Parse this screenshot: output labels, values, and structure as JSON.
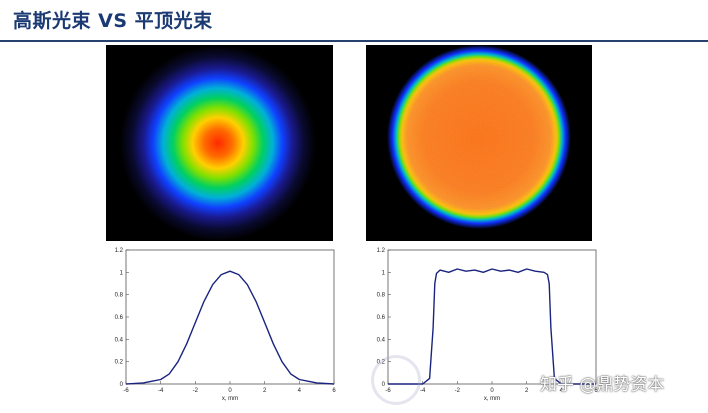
{
  "header": {
    "title": "高斯光束 VS 平顶光束"
  },
  "colors": {
    "title": "#1b3a73",
    "rule": "#27426f",
    "curve": "#1a237e"
  },
  "watermark": {
    "text": "知乎 @鼎势资本"
  },
  "chart_data": [
    {
      "type": "line",
      "xlim": [
        -6,
        6
      ],
      "ylim": [
        0,
        1.2
      ],
      "x_ticks": [
        "-6",
        "-4",
        "-2",
        "0",
        "2",
        "4",
        "6"
      ],
      "y_ticks": [
        "0",
        "0.2",
        "0.4",
        "0.6",
        "0.8",
        "1",
        "1.2"
      ],
      "xlabel": "x, mm",
      "x": [
        -6,
        -5,
        -4,
        -3.5,
        -3,
        -2.5,
        -2,
        -1.5,
        -1,
        -0.5,
        0,
        0.5,
        1,
        1.5,
        2,
        2.5,
        3,
        3.5,
        4,
        5,
        6
      ],
      "values": [
        0,
        0.01,
        0.04,
        0.09,
        0.2,
        0.36,
        0.55,
        0.74,
        0.89,
        0.98,
        1.01,
        0.98,
        0.89,
        0.74,
        0.55,
        0.36,
        0.2,
        0.09,
        0.04,
        0.01,
        0
      ]
    },
    {
      "type": "line",
      "xlim": [
        -6,
        6
      ],
      "ylim": [
        0,
        1.2
      ],
      "x_ticks": [
        "-6",
        "-4",
        "-2",
        "0",
        "2",
        "4",
        "6"
      ],
      "y_ticks": [
        "0",
        "0.2",
        "0.4",
        "0.6",
        "0.8",
        "1",
        "1.2"
      ],
      "xlabel": "x, mm",
      "x": [
        -6,
        -4,
        -3.6,
        -3.4,
        -3.3,
        -3.2,
        -3.0,
        -2.5,
        -2,
        -1.5,
        -1,
        -0.5,
        0,
        0.5,
        1,
        1.5,
        2,
        2.5,
        3.0,
        3.2,
        3.3,
        3.4,
        3.6,
        4,
        6
      ],
      "values": [
        0,
        0,
        0.05,
        0.5,
        0.9,
        0.99,
        1.02,
        1.0,
        1.03,
        1.01,
        1.02,
        1.0,
        1.03,
        1.01,
        1.02,
        1.0,
        1.03,
        1.01,
        1.0,
        0.98,
        0.9,
        0.5,
        0.05,
        0,
        0
      ]
    }
  ]
}
